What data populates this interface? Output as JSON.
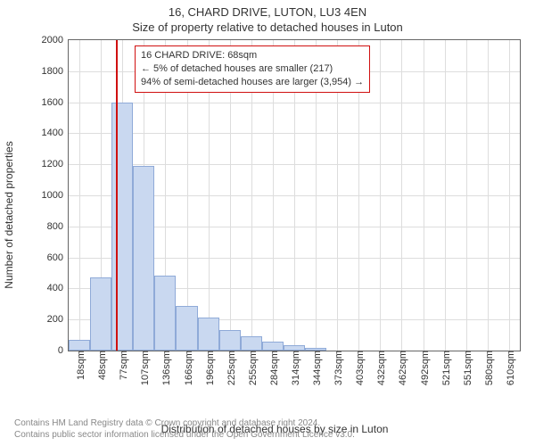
{
  "title_main": "16, CHARD DRIVE, LUTON, LU3 4EN",
  "title_sub": "Size of property relative to detached houses in Luton",
  "y_label": "Number of detached properties",
  "x_label": "Distribution of detached houses by size in Luton",
  "footer_line1": "Contains HM Land Registry data © Crown copyright and database right 2024.",
  "footer_line2": "Contains public sector information licensed under the Open Government Licence v3.0.",
  "chart": {
    "type": "histogram",
    "background_color": "#ffffff",
    "axis_color": "#666666",
    "grid_color": "#dddddd",
    "bar_fill": "#c9d8f0",
    "bar_stroke": "#8faad8",
    "marker_color": "#d01010",
    "text_color": "#333333",
    "tick_fontsize": 11,
    "label_fontsize": 12,
    "title_fontsize": 13,
    "ylim": [
      0,
      2000
    ],
    "ytick_step": 200,
    "x_categories": [
      "18sqm",
      "48sqm",
      "77sqm",
      "107sqm",
      "136sqm",
      "166sqm",
      "196sqm",
      "225sqm",
      "255sqm",
      "284sqm",
      "314sqm",
      "344sqm",
      "373sqm",
      "403sqm",
      "432sqm",
      "462sqm",
      "492sqm",
      "521sqm",
      "551sqm",
      "580sqm",
      "610sqm"
    ],
    "values": [
      70,
      470,
      1600,
      1190,
      480,
      290,
      210,
      130,
      90,
      60,
      35,
      20,
      0,
      0,
      0,
      0,
      0,
      0,
      0,
      0,
      0
    ],
    "bar_width": 1.0,
    "marker_x_value": 68,
    "marker_x_min": 18,
    "marker_x_step": 29.6,
    "yticks": [
      0,
      200,
      400,
      600,
      800,
      1000,
      1200,
      1400,
      1600,
      1800,
      2000
    ]
  },
  "annotation": {
    "line1": "16 CHARD DRIVE: 68sqm",
    "line2": "← 5% of detached houses are smaller (217)",
    "line3": "94% of semi-detached houses are larger (3,954) →",
    "border_color": "#d01010",
    "background": "#ffffff",
    "fontsize": 11
  }
}
